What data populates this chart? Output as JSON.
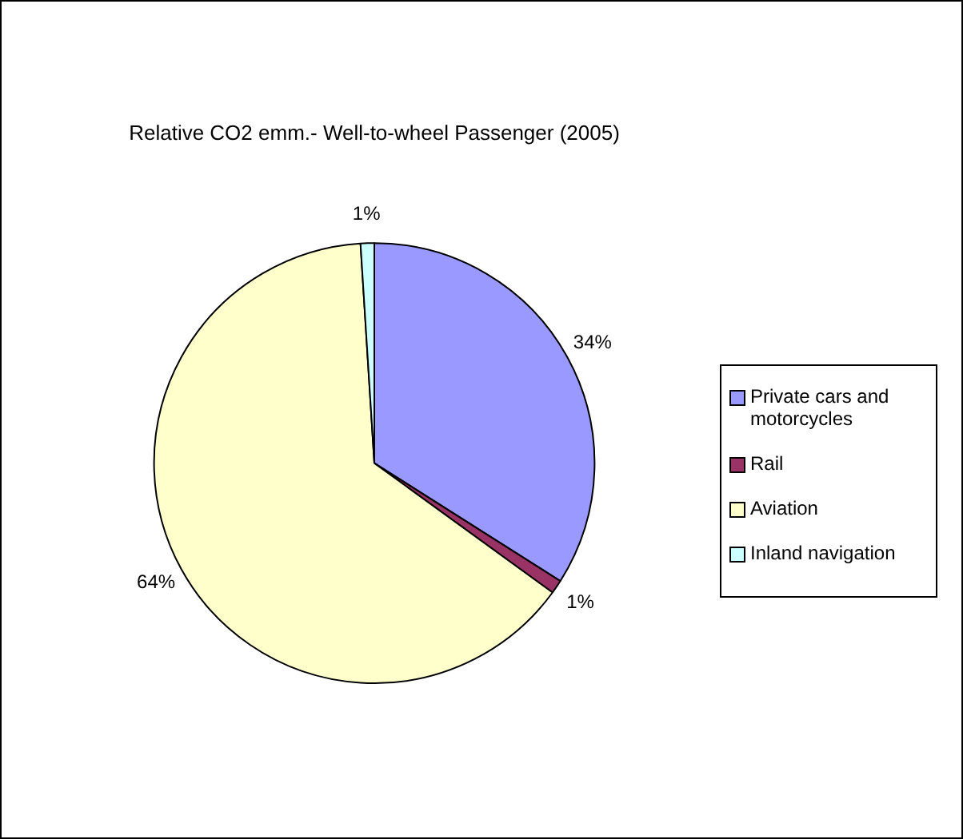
{
  "chart_data": {
    "type": "pie",
    "title": "Relative CO2 emm.- Well-to-wheel Passenger (2005)",
    "categories": [
      "Private cars and motorcycles",
      "Rail",
      "Aviation",
      "Inland navigation"
    ],
    "values": [
      34,
      1,
      64,
      1
    ],
    "colors": [
      "#9999ff",
      "#993366",
      "#ffffcc",
      "#ccffff"
    ],
    "value_labels": [
      "34%",
      "1%",
      "64%",
      "1%"
    ],
    "legend": "right"
  }
}
